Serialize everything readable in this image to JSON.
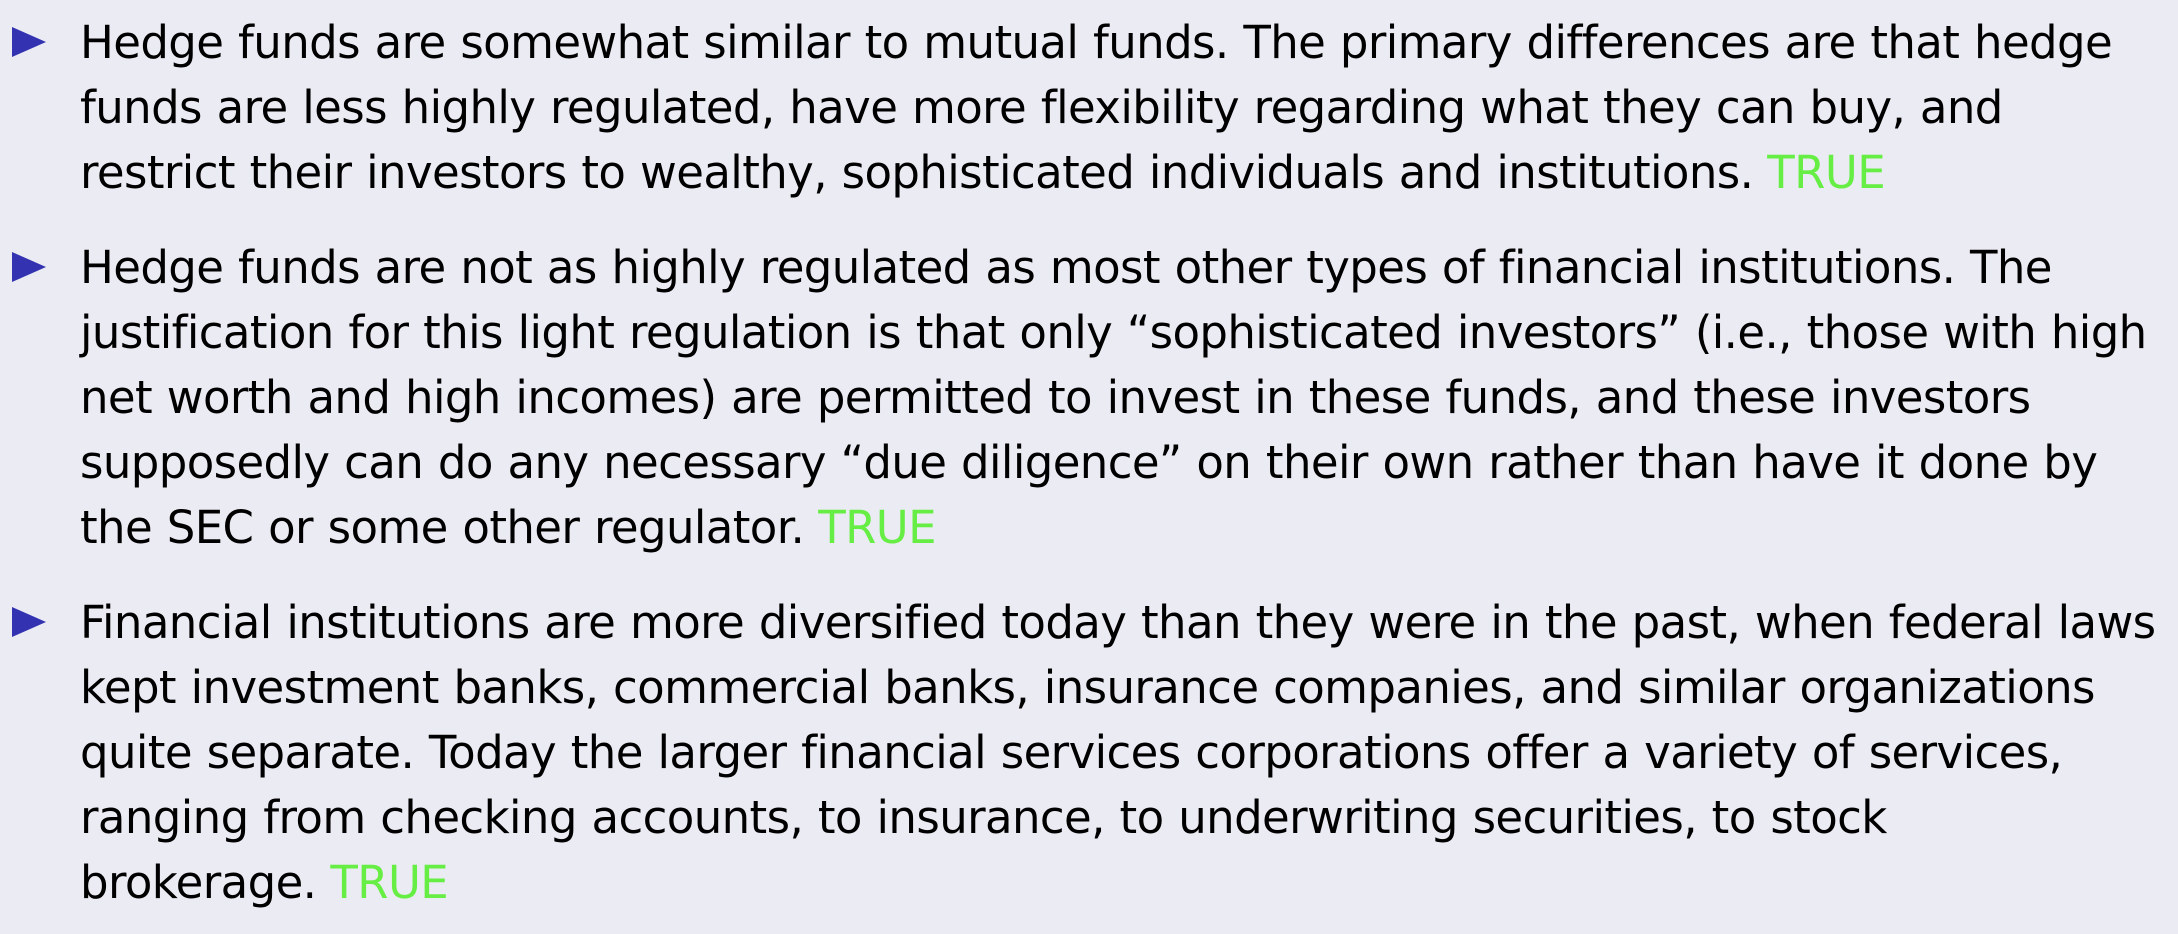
{
  "items": [
    {
      "text": "Hedge funds are somewhat similar to mutual funds.  The primary differences are that hedge funds are less highly regulated, have more flexibility regarding what they can buy, and restrict their investors to wealthy, sophisticated individuals and institutions.",
      "verdict": "TRUE"
    },
    {
      "text": "Hedge funds are not as highly regulated as most other types of financial institutions.  The justification for this light regulation is that only “sophisticated investors” (i.e., those with high net worth and high incomes) are permitted to invest in these funds, and these investors supposedly can do any necessary “due diligence” on their own rather than have it done by the SEC or some other regulator.",
      "verdict": "TRUE"
    },
    {
      "text": "Financial institutions are more diversified today than they were in the past, when federal laws kept investment banks, commercial banks, insurance companies, and similar organizations quite separate.  Today the larger financial services corporations offer a variety of services, ranging from checking accounts, to insurance, to underwriting securities, to stock brokerage.",
      "verdict": "TRUE"
    }
  ],
  "colors": {
    "background": "#ebebf4",
    "bullet": "#3333b2",
    "verdict": "#66ee44",
    "text": "#000000"
  },
  "icons": {
    "bullet": "triangle-bullet-icon"
  }
}
